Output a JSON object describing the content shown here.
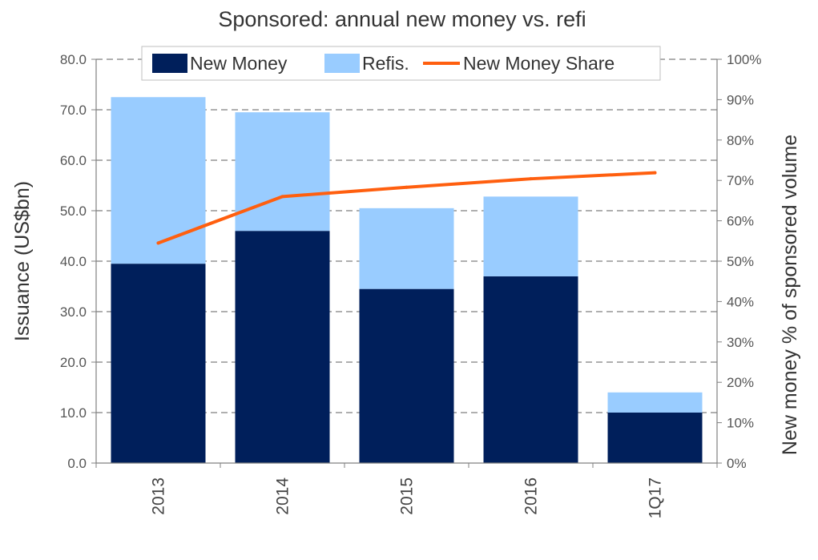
{
  "chart_data": {
    "type": "bar",
    "stacked": true,
    "title": "Sponsored: annual new money vs. refi",
    "ylabel": "Issuance (US$bn)",
    "y2label": "New money % of sponsored volume",
    "categories": [
      "2013",
      "2014",
      "2015",
      "2016",
      "1Q17"
    ],
    "ylim": [
      0,
      80
    ],
    "y_ticks": [
      "0.0",
      "10.0",
      "20.0",
      "30.0",
      "40.0",
      "50.0",
      "60.0",
      "70.0",
      "80.0"
    ],
    "y2lim": [
      0,
      100
    ],
    "y2_ticks": [
      "0%",
      "10%",
      "20%",
      "30%",
      "40%",
      "50%",
      "60%",
      "70%",
      "80%",
      "90%",
      "100%"
    ],
    "grid": true,
    "legend_position": "top",
    "series": [
      {
        "name": "New Money",
        "type": "bar",
        "axis": "left",
        "color": "#001f5b",
        "values": [
          39.5,
          46.0,
          34.5,
          37.0,
          10.0
        ]
      },
      {
        "name": "Refis.",
        "type": "bar",
        "axis": "left",
        "color": "#99ccff",
        "values": [
          33.0,
          23.5,
          16.0,
          15.8,
          4.0
        ]
      },
      {
        "name": "New Money Share",
        "type": "line",
        "axis": "right",
        "color": "#ff5f0f",
        "values": [
          54.5,
          66.0,
          68.3,
          70.4,
          71.9
        ]
      }
    ]
  }
}
